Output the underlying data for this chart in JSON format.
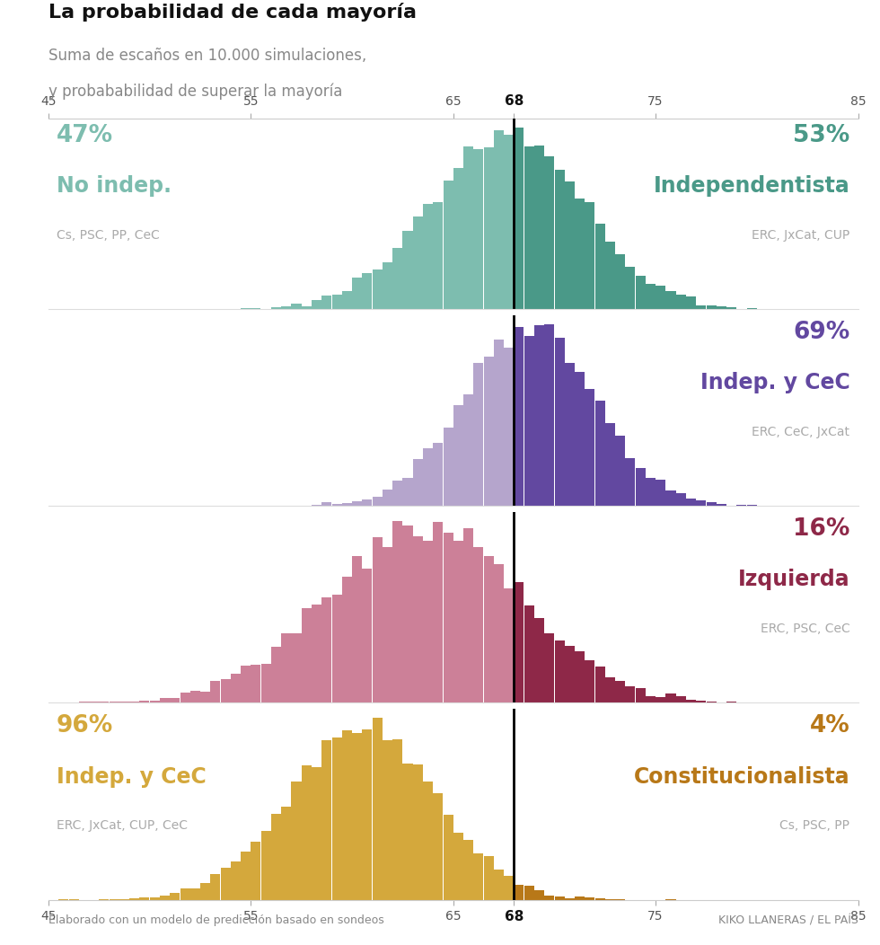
{
  "title": "La probabilidad de cada mayoría",
  "subtitle1": "Suma de escaños en 10.000 simulaciones,",
  "subtitle2": "y probababilidad de superar la mayoría",
  "majority_line": 68,
  "x_min": 45,
  "x_max": 85,
  "footer_left": "Elaborado con un modelo de predicción basado en sondeos",
  "footer_right": "KIKO LLANERAS / EL PAÍS",
  "panels": [
    {
      "color_left": "#7dbdaf",
      "color_right": "#4a9988",
      "pct_left": "47%",
      "pct_right": "53%",
      "label_left": "No indep.",
      "label_right": "Independentista",
      "sublabel_left": "Cs, PSC, PP, CeC",
      "sublabel_right": "ERC, JxCat, CUP",
      "mean": 67.6,
      "std": 3.8,
      "seed": 10
    },
    {
      "color_left": "#b5a5cc",
      "color_right": "#6248a0",
      "pct_left": "",
      "pct_right": "69%",
      "label_left": "",
      "label_right": "Indep. y CeC",
      "sublabel_left": "",
      "sublabel_right": "ERC, CeC, JxCat",
      "mean": 68.7,
      "std": 3.2,
      "seed": 20
    },
    {
      "color_left": "#cc8098",
      "color_right": "#8e2848",
      "pct_left": "",
      "pct_right": "16%",
      "label_left": "",
      "label_right": "Izquierda",
      "sublabel_left": "",
      "sublabel_right": "ERC, PSC, CeC",
      "mean": 63.5,
      "std": 4.8,
      "seed": 30
    },
    {
      "color_left": "#d4a83c",
      "color_right": "#b87818",
      "pct_left": "96%",
      "pct_right": "4%",
      "label_left": "Indep. y CeC",
      "label_right": "Constitucionalista",
      "sublabel_left": "ERC, JxCat, CUP, CeC",
      "sublabel_right": "Cs, PSC, PP",
      "mean": 60.5,
      "std": 3.6,
      "seed": 40
    }
  ]
}
